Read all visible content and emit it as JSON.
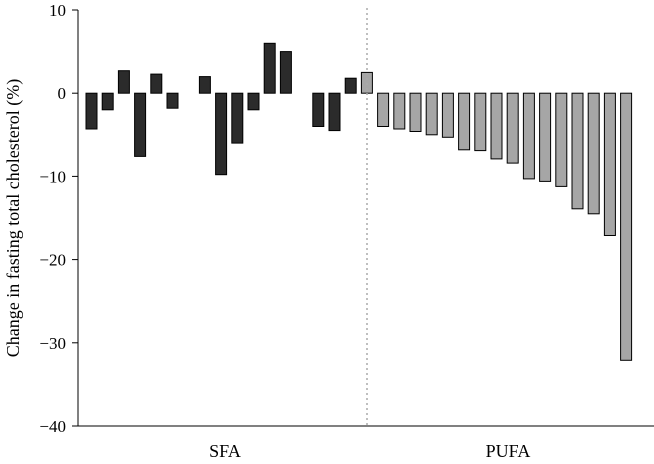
{
  "chart_data": {
    "type": "bar",
    "title": "",
    "xlabel": "",
    "ylabel": "Change in fasting total cholesterol (%)",
    "ylim": [
      -40,
      10
    ],
    "yticks": [
      {
        "value": 10,
        "label": "10"
      },
      {
        "value": 0,
        "label": "0"
      },
      {
        "value": -10,
        "label": "−10"
      },
      {
        "value": -20,
        "label": "−20"
      },
      {
        "value": -30,
        "label": "−30"
      },
      {
        "value": -40,
        "label": "−40"
      }
    ],
    "grid": false,
    "groups": [
      {
        "label": "SFA",
        "color": "#2b2b2b",
        "values": [
          -4.3,
          -2.0,
          2.7,
          -7.6,
          2.3,
          -1.8,
          null,
          2.0,
          -9.8,
          -6.0,
          -2.0,
          6.0,
          5.0,
          null,
          -4.0,
          -4.5,
          1.8
        ]
      },
      {
        "label": "PUFA",
        "color": "#a6a6a6",
        "values": [
          2.5,
          -4.0,
          -4.3,
          -4.6,
          -5.0,
          -5.3,
          -6.8,
          -6.9,
          -7.9,
          -8.4,
          -10.3,
          -10.6,
          -11.2,
          -13.9,
          -14.5,
          -17.1,
          -32.1
        ]
      }
    ]
  }
}
